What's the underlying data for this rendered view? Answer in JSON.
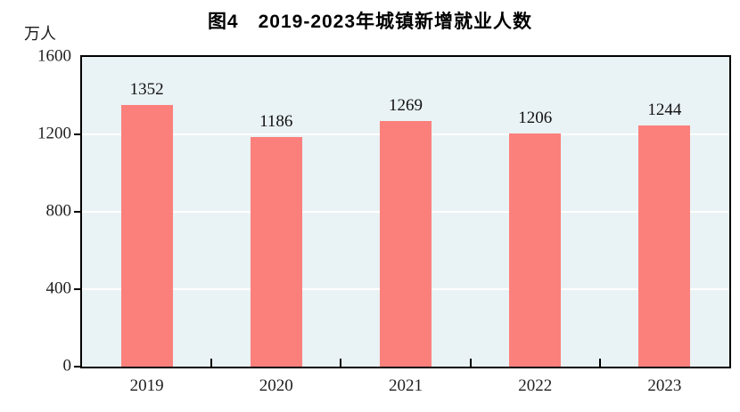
{
  "header": {
    "title": "图4　2019-2023年城镇新增就业人数"
  },
  "y_axis": {
    "unit": "万人",
    "tick_labels": [
      "0",
      "400",
      "800",
      "1200",
      "1600"
    ]
  },
  "x_axis": {
    "tick_labels": [
      "2019",
      "2020",
      "2021",
      "2022",
      "2023"
    ]
  },
  "chart_data": {
    "type": "bar",
    "title": "图4　2019-2023年城镇新增就业人数",
    "categories": [
      "2019",
      "2020",
      "2021",
      "2022",
      "2023"
    ],
    "values": [
      1352,
      1186,
      1269,
      1206,
      1244
    ],
    "data_labels": [
      "1352",
      "1186",
      "1269",
      "1206",
      "1244"
    ],
    "xlabel": "",
    "ylabel": "万人",
    "ylim": [
      0,
      1600
    ],
    "yticks": [
      0,
      400,
      800,
      1200,
      1600
    ],
    "grid": "horizontal",
    "legend_position": "none",
    "colors": {
      "bar_fill": "#fb807c",
      "plot_background": "#e9f2f5",
      "gridline": "#ffffff",
      "axis_border": "#000000",
      "text": "#1a1a1a",
      "page_background": "#ffffff"
    }
  }
}
